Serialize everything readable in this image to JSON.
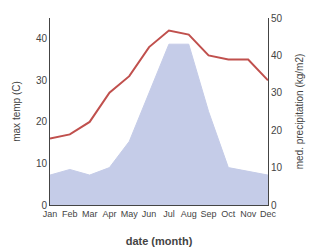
{
  "chart_data": {
    "type": "line",
    "xlabel": "date (month)",
    "ylabel": "max temp (C)",
    "y2label": "med. precipitation (kg/m2)",
    "categories": [
      "Jan",
      "Feb",
      "Mar",
      "Apr",
      "May",
      "Jun",
      "Jul",
      "Aug",
      "Sep",
      "Oct",
      "Nov",
      "Dec"
    ],
    "series": [
      {
        "type": "area",
        "color": "#c5cce8",
        "axis": "y2",
        "values": [
          8,
          9.5,
          8,
          10,
          17,
          30,
          43,
          43,
          25,
          10,
          9,
          8
        ]
      },
      {
        "type": "line",
        "color": "#c0504d",
        "values": [
          16,
          17,
          20,
          27,
          31,
          38,
          42,
          41,
          36,
          35,
          35,
          30
        ]
      }
    ],
    "ylim": [
      0,
      45
    ],
    "yticks": [
      0,
      10,
      20,
      30,
      40
    ],
    "y2lim": [
      0,
      50
    ],
    "y2ticks": [
      0,
      10,
      20,
      30,
      40,
      50
    ],
    "grid": false
  }
}
